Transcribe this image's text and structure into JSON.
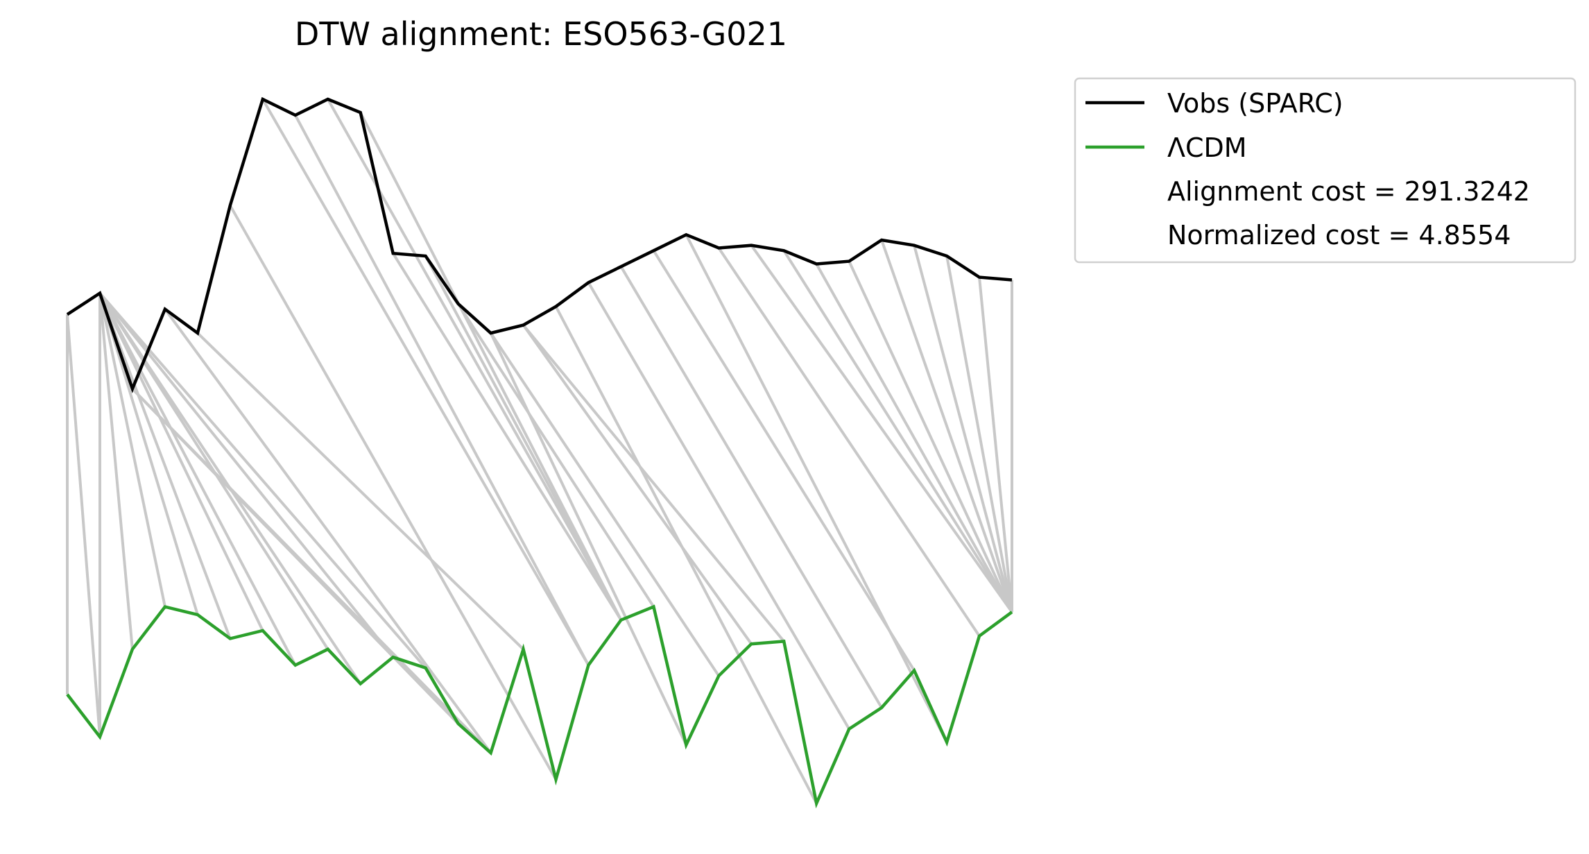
{
  "chart_data": {
    "type": "line",
    "title": "DTW alignment: ESO563-G021",
    "xlabel": "",
    "ylabel": "",
    "axes_visible": false,
    "grid": false,
    "legend_position": "outside-top-right",
    "x": [
      0,
      1,
      2,
      3,
      4,
      5,
      6,
      7,
      8,
      9,
      10,
      11,
      12,
      13,
      14,
      15,
      16,
      17,
      18,
      19,
      20,
      21,
      22,
      23,
      24,
      25,
      26,
      27,
      28,
      29
    ],
    "series": [
      {
        "name": "Vobs (SPARC)",
        "color": "#000000",
        "values": [
          52,
          60,
          24,
          54,
          45,
          93,
          133,
          127,
          133,
          128,
          75,
          74,
          56,
          45,
          48,
          55,
          64,
          70,
          76,
          82,
          77,
          78,
          76,
          71,
          72,
          80,
          78,
          74,
          66,
          65
        ]
      },
      {
        "name": "ΛCDM",
        "color": "#2ca02c",
        "values": [
          -91,
          -107,
          -74,
          -58,
          -61,
          -70,
          -67,
          -80,
          -74,
          -87,
          -77,
          -81,
          -102,
          -113,
          -74,
          -123,
          -80,
          -63,
          -58,
          -110,
          -84,
          -72,
          -71,
          -132,
          -104,
          -96,
          -82,
          -109,
          -69,
          -60
        ]
      }
    ],
    "alignment_path": [
      [
        0,
        0
      ],
      [
        0,
        1
      ],
      [
        1,
        1
      ],
      [
        1,
        2
      ],
      [
        1,
        3
      ],
      [
        1,
        4
      ],
      [
        1,
        5
      ],
      [
        1,
        6
      ],
      [
        1,
        7
      ],
      [
        1,
        8
      ],
      [
        1,
        9
      ],
      [
        1,
        10
      ],
      [
        1,
        11
      ],
      [
        2,
        12
      ],
      [
        2,
        13
      ],
      [
        3,
        13
      ],
      [
        4,
        14
      ],
      [
        5,
        15
      ],
      [
        6,
        16
      ],
      [
        7,
        16
      ],
      [
        8,
        17
      ],
      [
        9,
        17
      ],
      [
        10,
        17
      ],
      [
        11,
        17
      ],
      [
        12,
        18
      ],
      [
        13,
        19
      ],
      [
        13,
        20
      ],
      [
        14,
        21
      ],
      [
        14,
        22
      ],
      [
        15,
        23
      ],
      [
        16,
        24
      ],
      [
        17,
        25
      ],
      [
        18,
        26
      ],
      [
        19,
        27
      ],
      [
        20,
        28
      ],
      [
        21,
        29
      ],
      [
        22,
        29
      ],
      [
        23,
        29
      ],
      [
        24,
        29
      ],
      [
        25,
        29
      ],
      [
        26,
        29
      ],
      [
        27,
        29
      ],
      [
        28,
        29
      ],
      [
        29,
        29
      ]
    ],
    "legend_entries": [
      {
        "label": "Vobs (SPARC)",
        "color": "#000000"
      },
      {
        "label": "ΛCDM",
        "color": "#2ca02c"
      },
      {
        "label": "Alignment cost = 291.3242",
        "color": ""
      },
      {
        "label": "Normalized cost = 4.8554",
        "color": ""
      }
    ],
    "alignment_color": "#c8c8c8",
    "alignment_cost": "291.3242",
    "normalized_cost": "4.8554"
  }
}
